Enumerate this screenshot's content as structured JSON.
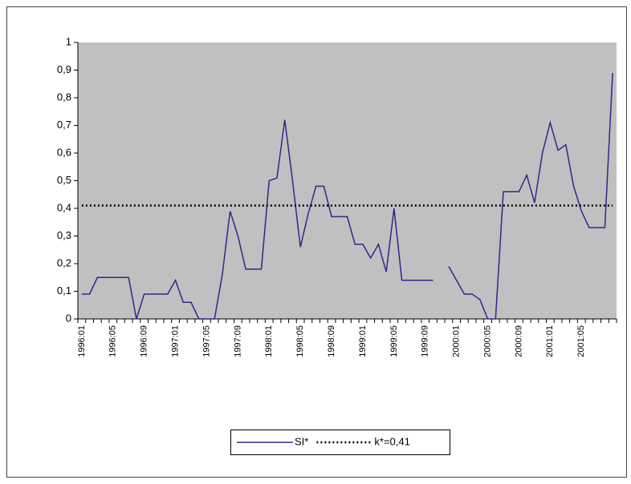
{
  "chart_data": {
    "type": "line",
    "categories": [
      "1996:01",
      null,
      null,
      null,
      "1996:05",
      null,
      null,
      null,
      "1996:09",
      null,
      null,
      null,
      "1997:01",
      null,
      null,
      null,
      "1997:05",
      null,
      null,
      null,
      "1997:09",
      null,
      null,
      null,
      "1998:01",
      null,
      null,
      null,
      "1998:05",
      null,
      null,
      null,
      "1998:09",
      null,
      null,
      null,
      "1999:01",
      null,
      null,
      null,
      "1999:05",
      null,
      null,
      null,
      "1999:09",
      null,
      null,
      null,
      "2000:01",
      null,
      null,
      null,
      "2000:05",
      null,
      null,
      null,
      "2000:09",
      null,
      null,
      null,
      "2001:01",
      null,
      null,
      null,
      "2001:05",
      null,
      null,
      null,
      null
    ],
    "series": [
      {
        "name": "SI*",
        "color": "#35248c",
        "dash": false,
        "values": [
          0.09,
          0.09,
          0.15,
          0.15,
          0.15,
          0.15,
          0.15,
          0,
          0.09,
          0.09,
          0.09,
          0.09,
          0.14,
          0.06,
          0.06,
          0,
          0,
          0,
          0.16,
          0.39,
          0.3,
          0.18,
          0.18,
          0.18,
          0.5,
          0.51,
          0.72,
          0.5,
          0.26,
          0.38,
          0.48,
          0.48,
          0.37,
          0.37,
          0.37,
          0.27,
          0.27,
          0.22,
          0.27,
          0.17,
          0.4,
          0.14,
          0.14,
          0.14,
          0.14,
          0.14,
          null,
          0.19,
          0.14,
          0.09,
          0.09,
          0.07,
          0,
          0,
          0.46,
          0.46,
          0.46,
          0.52,
          0.42,
          0.6,
          0.71,
          0.61,
          0.63,
          0.48,
          0.39,
          0.33,
          0.33,
          0.33,
          0.89
        ]
      },
      {
        "name": "k*=0,41",
        "color": "#000000",
        "dash": true,
        "values": [
          0.41,
          0.41,
          0.41,
          0.41,
          0.41,
          0.41,
          0.41,
          0.41,
          0.41,
          0.41,
          0.41,
          0.41,
          0.41,
          0.41,
          0.41,
          0.41,
          0.41,
          0.41,
          0.41,
          0.41,
          0.41,
          0.41,
          0.41,
          0.41,
          0.41,
          0.41,
          0.41,
          0.41,
          0.41,
          0.41,
          0.41,
          0.41,
          0.41,
          0.41,
          0.41,
          0.41,
          0.41,
          0.41,
          0.41,
          0.41,
          0.41,
          0.41,
          0.41,
          0.41,
          0.41,
          0.41,
          0.41,
          0.41,
          0.41,
          0.41,
          0.41,
          0.41,
          0.41,
          0.41,
          0.41,
          0.41,
          0.41,
          0.41,
          0.41,
          0.41,
          0.41,
          0.41,
          0.41,
          0.41,
          0.41,
          0.41,
          0.41,
          0.41,
          0.41
        ]
      }
    ],
    "ylim": [
      0,
      1
    ],
    "yticks": [
      0,
      {
        "value": 0.1,
        "label": "0,1"
      },
      {
        "value": 0.2,
        "label": "0,2"
      },
      {
        "value": 0.3,
        "label": "0,3"
      },
      {
        "value": 0.4,
        "label": "0,4"
      },
      {
        "value": 0.5,
        "label": "0,5"
      },
      {
        "value": 0.6,
        "label": "0,6"
      },
      {
        "value": 0.7,
        "label": "0,7"
      },
      {
        "value": 0.8,
        "label": "0,8"
      },
      {
        "value": 0.9,
        "label": "0,9"
      },
      1
    ],
    "plot_background": "#c0c0c0",
    "legend": "bottom"
  }
}
